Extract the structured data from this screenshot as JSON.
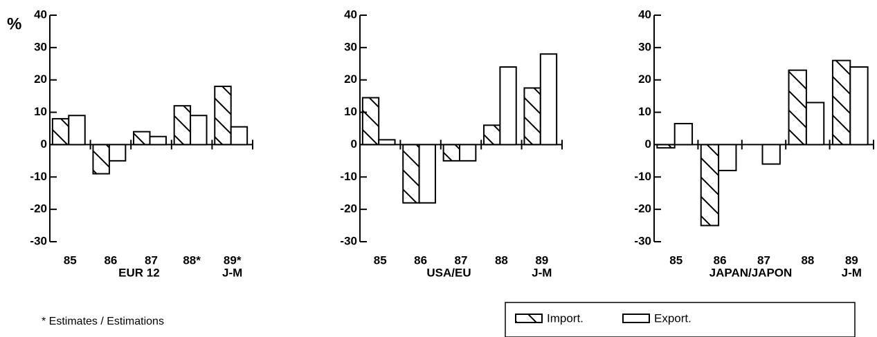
{
  "chart_data": [
    {
      "type": "bar",
      "y_unit": "%",
      "xlabel": "EUR 12",
      "period_note": "J-M",
      "categories": [
        "85",
        "86",
        "87",
        "88*",
        "89*"
      ],
      "series": [
        {
          "values": [
            8,
            -9,
            4,
            12,
            18
          ]
        },
        {
          "values": [
            9,
            -5,
            2.5,
            9,
            5.5
          ]
        }
      ],
      "ylim": [
        -30,
        40
      ],
      "yticks": [
        -30,
        -20,
        -10,
        0,
        10,
        20,
        30,
        40
      ]
    },
    {
      "type": "bar",
      "xlabel": "USA/EU",
      "period_note": "J-M",
      "categories": [
        "85",
        "86",
        "87",
        "88",
        "89"
      ],
      "series": [
        {
          "values": [
            14.5,
            -18,
            -5,
            6,
            17.5
          ]
        },
        {
          "values": [
            1.5,
            -18,
            -5,
            24,
            28
          ]
        }
      ],
      "ylim": [
        -30,
        40
      ],
      "yticks": [
        -30,
        -20,
        -10,
        0,
        10,
        20,
        30,
        40
      ]
    },
    {
      "type": "bar",
      "xlabel": "JAPAN/JAPON",
      "period_note": "J-M",
      "categories": [
        "85",
        "86",
        "87",
        "88",
        "89"
      ],
      "series": [
        {
          "values": [
            -1,
            -25,
            0,
            23,
            26
          ]
        },
        {
          "values": [
            6.5,
            -8,
            -6,
            13,
            24
          ]
        }
      ],
      "ylim": [
        -30,
        40
      ],
      "yticks": [
        -30,
        -20,
        -10,
        0,
        10,
        20,
        30,
        40
      ]
    }
  ],
  "legend": [
    {
      "name": "Import.",
      "hatch": true
    },
    {
      "name": "Export.",
      "hatch": false
    }
  ],
  "footnote": "* Estimates / Estimations"
}
